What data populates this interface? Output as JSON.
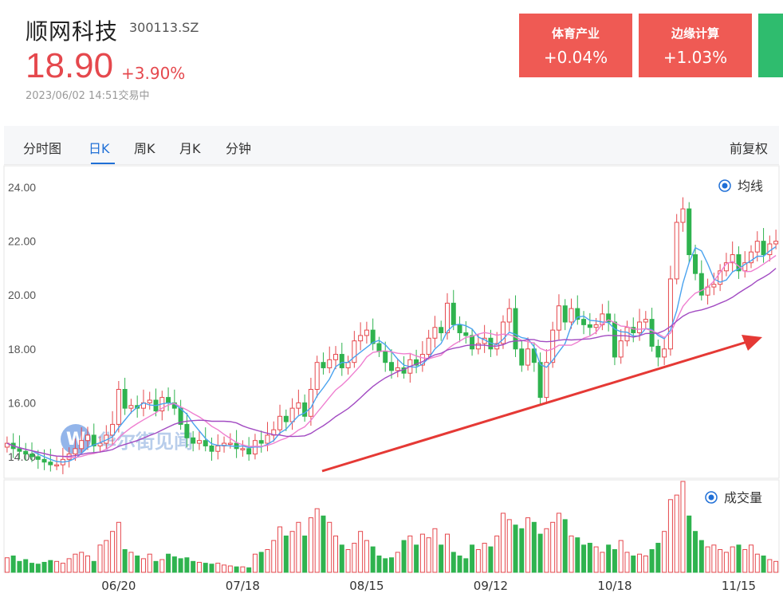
{
  "header": {
    "name": "顺网科技",
    "code": "300113.SZ",
    "price": "18.90",
    "change": "+3.90%",
    "time": "2023/06/02 14:51交易中"
  },
  "sectors": [
    {
      "name": "体育产业",
      "change": "+0.04%",
      "color": "#ef5a54"
    },
    {
      "name": "边缘计算",
      "change": "+1.03%",
      "color": "#ef5a54"
    },
    {
      "name": "",
      "change": "",
      "color": "#2fbc6e"
    }
  ],
  "tabs": [
    {
      "label": "分时图",
      "active": false
    },
    {
      "label": "日K",
      "active": true
    },
    {
      "label": "周K",
      "active": false
    },
    {
      "label": "月K",
      "active": false
    },
    {
      "label": "分钟",
      "active": false
    }
  ],
  "adjust_label": "前复权",
  "watermark": "华尔街见闻",
  "colors": {
    "up": "#e5484d",
    "down": "#2fb34f",
    "ma_blue": "#4aa3ef",
    "ma_pink": "#ef7fd0",
    "ma_purple": "#a24bc2",
    "accent": "#1f6fd6"
  },
  "chart_data": {
    "type": "candlestick",
    "price_panel": {
      "legend": "均线",
      "y_ticks": [
        "24.00",
        "22.00",
        "20.00",
        "18.00",
        "16.00",
        "14.00"
      ],
      "ylim": [
        13.2,
        24.8
      ]
    },
    "volume_panel": {
      "legend": "成交量"
    },
    "x_ticks": [
      "06/20",
      "07/18",
      "08/15",
      "09/12",
      "10/18",
      "11/15"
    ],
    "x_tick_index": [
      18,
      38,
      58,
      78,
      98,
      118
    ],
    "close": [
      14.5,
      14.3,
      14.2,
      14.1,
      14.0,
      13.9,
      13.8,
      13.7,
      13.7,
      13.9,
      14.1,
      14.3,
      14.6,
      14.8,
      14.4,
      14.5,
      14.8,
      15.2,
      16.5,
      15.8,
      15.9,
      15.8,
      16.0,
      16.1,
      15.7,
      16.2,
      16.0,
      15.8,
      15.2,
      14.7,
      14.5,
      14.6,
      14.4,
      14.2,
      14.4,
      14.5,
      14.5,
      14.3,
      14.3,
      14.1,
      14.6,
      14.5,
      14.8,
      15.0,
      15.5,
      15.3,
      15.8,
      16.0,
      15.5,
      16.5,
      17.5,
      17.3,
      17.6,
      17.8,
      17.3,
      17.5,
      18.3,
      18.5,
      18.7,
      18.2,
      17.9,
      17.5,
      17.2,
      17.3,
      17.1,
      17.6,
      17.4,
      17.8,
      18.4,
      18.8,
      18.6,
      19.7,
      18.9,
      18.6,
      18.5,
      18.0,
      18.2,
      18.4,
      18.0,
      18.2,
      19.0,
      19.5,
      18.0,
      17.4,
      18.0,
      17.5,
      16.2,
      17.5,
      18.7,
      19.6,
      19.0,
      19.5,
      19.1,
      18.9,
      18.8,
      18.9,
      19.3,
      19.0,
      17.7,
      18.3,
      18.8,
      18.6,
      19.0,
      19.1,
      18.1,
      17.7,
      18.0,
      20.6,
      22.7,
      23.2,
      21.5,
      20.8,
      20.0,
      20.3,
      20.4,
      20.9,
      21.2,
      21.5,
      20.9,
      21.2,
      21.6,
      22.0,
      21.5,
      21.9,
      22.0
    ],
    "volume": [
      0.16,
      0.18,
      0.12,
      0.14,
      0.1,
      0.09,
      0.11,
      0.13,
      0.12,
      0.1,
      0.15,
      0.2,
      0.22,
      0.18,
      0.12,
      0.3,
      0.35,
      0.45,
      0.55,
      0.25,
      0.22,
      0.18,
      0.15,
      0.2,
      0.12,
      0.14,
      0.2,
      0.17,
      0.15,
      0.16,
      0.12,
      0.11,
      0.1,
      0.09,
      0.1,
      0.08,
      0.07,
      0.06,
      0.06,
      0.05,
      0.2,
      0.22,
      0.25,
      0.35,
      0.5,
      0.4,
      0.45,
      0.55,
      0.4,
      0.6,
      0.7,
      0.62,
      0.55,
      0.4,
      0.3,
      0.25,
      0.32,
      0.45,
      0.35,
      0.28,
      0.18,
      0.15,
      0.16,
      0.22,
      0.35,
      0.4,
      0.3,
      0.42,
      0.38,
      0.48,
      0.3,
      0.42,
      0.22,
      0.18,
      0.15,
      0.3,
      0.25,
      0.32,
      0.28,
      0.4,
      0.65,
      0.58,
      0.52,
      0.48,
      0.6,
      0.55,
      0.42,
      0.48,
      0.55,
      0.65,
      0.58,
      0.4,
      0.38,
      0.3,
      0.32,
      0.28,
      0.22,
      0.3,
      0.25,
      0.35,
      0.22,
      0.18,
      0.2,
      0.18,
      0.25,
      0.32,
      0.45,
      0.8,
      0.85,
      1.0,
      0.62,
      0.45,
      0.35,
      0.28,
      0.3,
      0.25,
      0.22,
      0.28,
      0.3,
      0.25,
      0.3,
      0.2,
      0.18,
      0.14,
      0.12
    ]
  }
}
